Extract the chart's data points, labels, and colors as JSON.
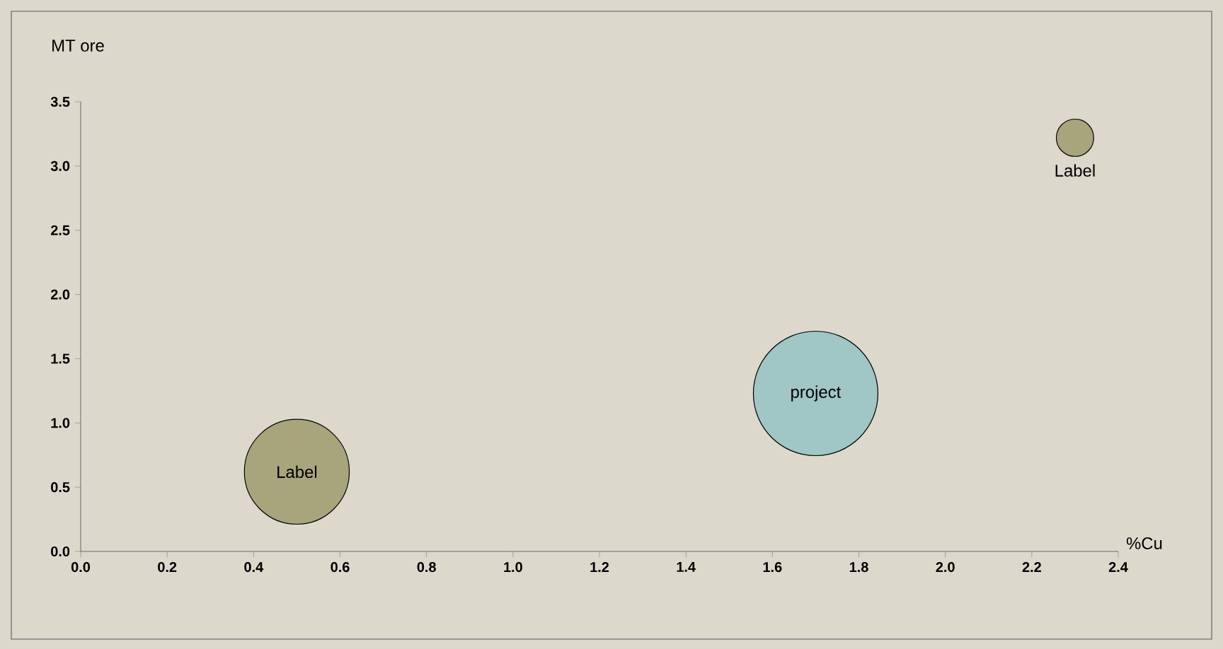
{
  "chart_data": {
    "type": "bubble",
    "xlabel": "%Cu",
    "ylabel": "MT ore",
    "x": [
      0.5,
      1.7,
      2.3
    ],
    "values": [
      0.62,
      1.23,
      3.22
    ],
    "sizes": [
      0.71,
      1,
      0.09
    ],
    "colors": [
      "#a8a47c",
      "#a0c6c6",
      "#a8a47c"
    ],
    "xlim": [
      0,
      2.4
    ],
    "ylim": [
      0,
      3.5
    ],
    "xticks": [
      {
        "value": 0,
        "label": "0.0"
      },
      0.2,
      0.4,
      0.6,
      0.8,
      {
        "value": 1,
        "label": "1.0"
      },
      1.2,
      1.4,
      1.6,
      1.8,
      {
        "value": 2,
        "label": "2.0"
      },
      2.2,
      2.4
    ],
    "yticks": [
      {
        "value": 0,
        "label": "0.0"
      },
      0.5,
      {
        "value": 1,
        "label": "1.0"
      },
      1.5,
      {
        "value": 2,
        "label": "2.0"
      },
      2.5,
      {
        "value": 3,
        "label": "3.0"
      },
      3.5
    ],
    "annotations": [
      {
        "text": "Label",
        "x": 0.5,
        "y": 0.62
      },
      {
        "text": "project",
        "x": 1.7,
        "y": 1.23
      },
      {
        "text": "Label",
        "x": 2.3,
        "y": 3.22
      }
    ],
    "grid": false
  }
}
